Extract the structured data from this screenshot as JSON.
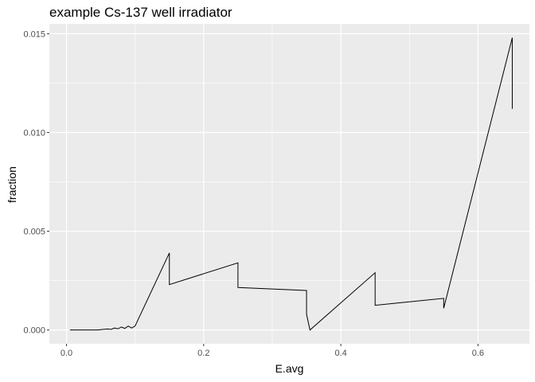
{
  "chart_data": {
    "type": "line",
    "title": "example Cs-137 well irradiator",
    "xlabel": "E.avg",
    "ylabel": "fraction",
    "xlim": [
      -0.025,
      0.675
    ],
    "ylim": [
      -0.0007,
      0.0155
    ],
    "x_ticks": [
      {
        "value": 0.0,
        "label": "0.0"
      },
      {
        "value": 0.2,
        "label": "0.2"
      },
      {
        "value": 0.4,
        "label": "0.4"
      },
      {
        "value": 0.6,
        "label": "0.6"
      }
    ],
    "y_ticks": [
      {
        "value": 0.0,
        "label": "0.000"
      },
      {
        "value": 0.005,
        "label": "0.005"
      },
      {
        "value": 0.01,
        "label": "0.010"
      },
      {
        "value": 0.015,
        "label": "0.015"
      }
    ],
    "grid": true,
    "legend": "none",
    "colors": {
      "panel": "#ebebeb",
      "grid": "#ffffff",
      "line": "#000000",
      "tick_text": "#4d4d4d"
    },
    "series": [
      {
        "x": [
          0.005,
          0.045,
          0.06,
          0.065,
          0.07,
          0.075,
          0.08,
          0.085,
          0.09,
          0.095,
          0.1,
          0.15,
          0.15,
          0.25,
          0.25,
          0.35,
          0.35,
          0.355,
          0.45,
          0.45,
          0.55,
          0.55,
          0.65,
          0.65
        ],
        "y": [
          0.0,
          0.0,
          5e-05,
          3e-05,
          0.0001,
          6e-05,
          0.00015,
          8e-05,
          0.0002,
          0.0001,
          0.0002,
          0.0039,
          0.0023,
          0.0034,
          0.00215,
          0.002,
          0.0008,
          0.0,
          0.0029,
          0.00125,
          0.0016,
          0.0011,
          0.0148,
          0.0112
        ]
      }
    ]
  }
}
